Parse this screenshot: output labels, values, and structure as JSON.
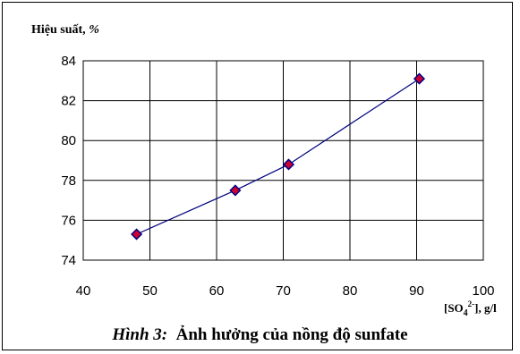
{
  "chart_data": {
    "type": "line",
    "ylabel_prefix": "Hiệu suất, ",
    "ylabel_unit": "%",
    "xlabel": {
      "open": "[SO",
      "sub": "4",
      "sup": "2-",
      "close": "], g/l"
    },
    "xlim": [
      40,
      100
    ],
    "ylim": [
      74,
      84
    ],
    "x_ticks": [
      40,
      50,
      60,
      70,
      80,
      90,
      100
    ],
    "y_ticks": [
      74,
      76,
      78,
      80,
      82,
      84
    ],
    "grid": true,
    "line_color": "#00007f",
    "marker_fill": "#cc0033",
    "marker_edge": "#000080",
    "series": [
      {
        "x": [
          48,
          62.8,
          70.8,
          90.4
        ],
        "y": [
          75.3,
          77.5,
          78.8,
          83.1
        ]
      }
    ]
  },
  "caption": {
    "prefix": "Hình 3:",
    "text": "Ảnh hưởng của nồng độ sunfate"
  }
}
